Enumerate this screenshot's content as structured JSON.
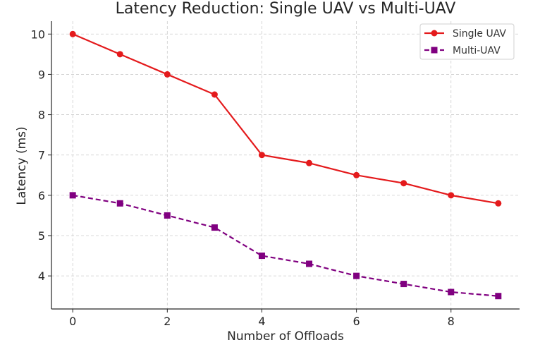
{
  "chart_data": {
    "type": "line",
    "title": "Latency Reduction: Single UAV vs Multi-UAV",
    "xlabel": "Number of Offloads",
    "ylabel": "Latency (ms)",
    "x": [
      0,
      1,
      2,
      3,
      4,
      5,
      6,
      7,
      8,
      9
    ],
    "xticks": [
      0,
      2,
      4,
      6,
      8
    ],
    "yticks": [
      4,
      5,
      6,
      7,
      8,
      9,
      10
    ],
    "xlim": [
      -0.45,
      9.45
    ],
    "ylim": [
      3.18,
      10.32
    ],
    "grid": true,
    "legend_position": "top-right",
    "series": [
      {
        "name": "Single UAV",
        "color": "#e41a1c",
        "marker": "circle",
        "linestyle": "solid",
        "values": [
          10,
          9.5,
          9,
          8.5,
          7,
          6.8,
          6.5,
          6.3,
          6,
          5.8
        ]
      },
      {
        "name": "Multi-UAV",
        "color": "#800080",
        "marker": "square",
        "linestyle": "dashed",
        "values": [
          6,
          5.8,
          5.5,
          5.2,
          4.5,
          4.3,
          4,
          3.8,
          3.6,
          3.5
        ]
      }
    ]
  }
}
